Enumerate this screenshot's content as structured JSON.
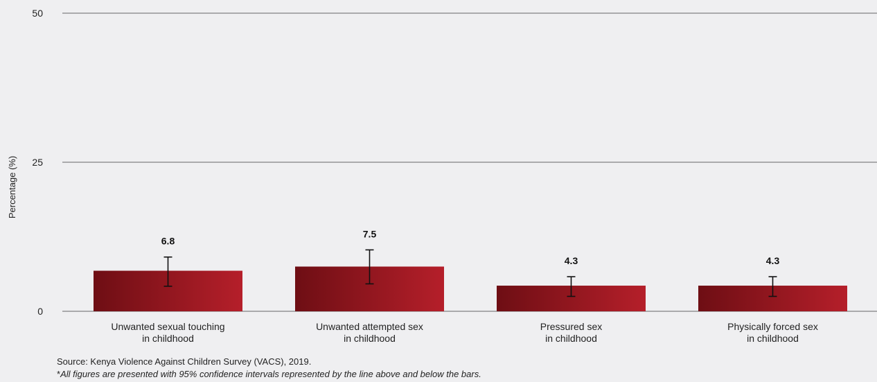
{
  "chart_data": {
    "type": "bar",
    "ylabel": "Percentage (%)",
    "ylim": [
      0,
      50
    ],
    "yticks": [
      0,
      25,
      50
    ],
    "grid": true,
    "categories": [
      [
        "Unwanted sexual touching",
        "in childhood"
      ],
      [
        "Unwanted attempted sex",
        "in childhood"
      ],
      [
        "Pressured sex",
        "in childhood"
      ],
      [
        "Physically forced sex",
        "in childhood"
      ]
    ],
    "values": [
      6.8,
      7.5,
      4.3,
      4.3
    ],
    "value_labels": [
      "6.8",
      "7.5",
      "4.3",
      "4.3"
    ],
    "ci_low": [
      4.2,
      4.6,
      2.5,
      2.5
    ],
    "ci_high": [
      9.1,
      10.3,
      5.8,
      5.8
    ],
    "bar_gradient": [
      "#6e0e14",
      "#b51f2a"
    ]
  },
  "footnotes": {
    "source": "Source: Kenya Violence Against Children Survey (VACS), 2019.",
    "asterisk": "*",
    "note": "All figures are presented with 95% confidence intervals represented by the line above and below the bars."
  }
}
